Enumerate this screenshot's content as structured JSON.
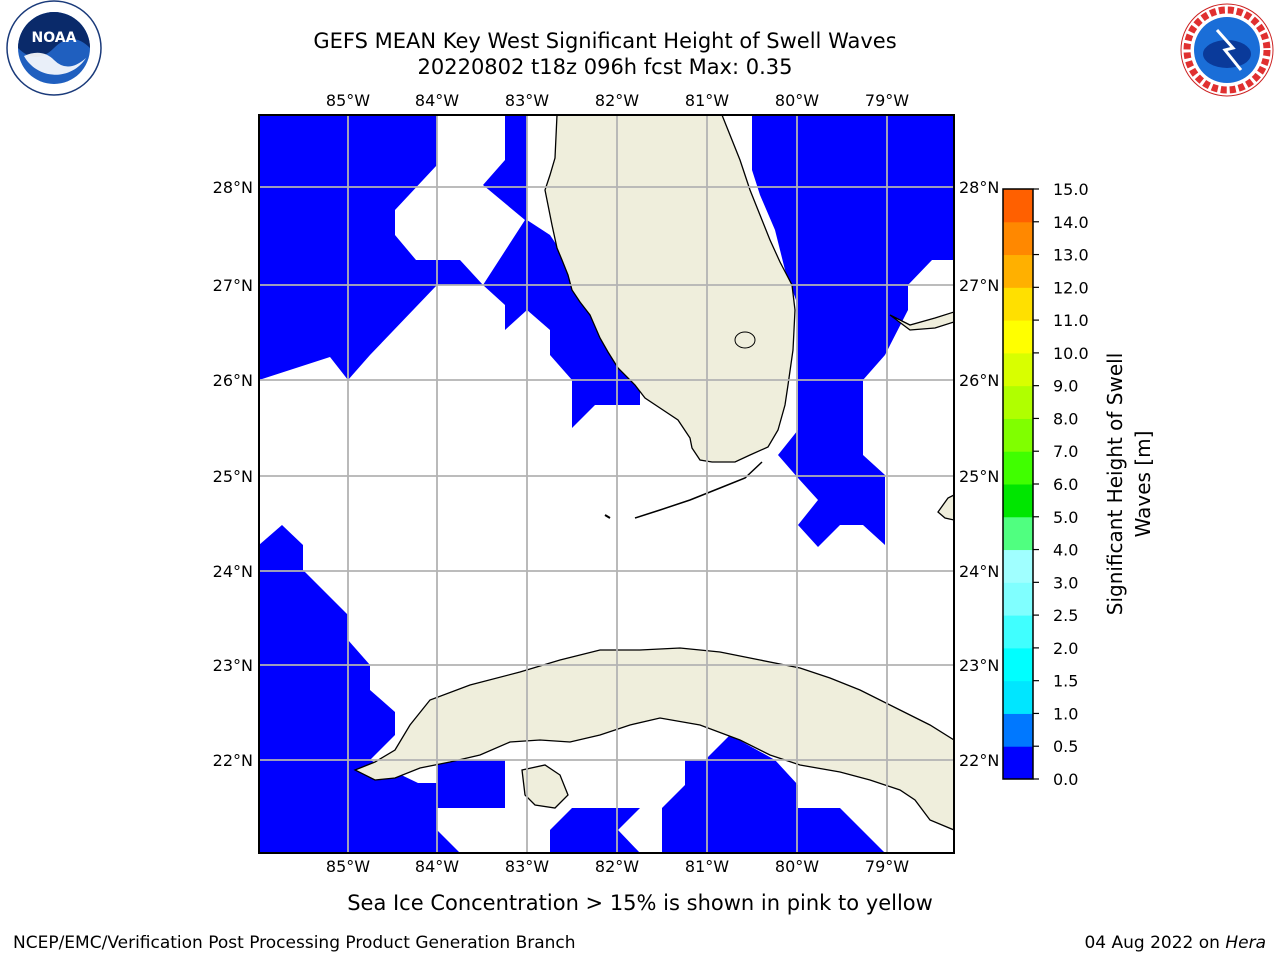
{
  "header": {
    "title_line1": "GEFS MEAN Key West Significant Height of Swell Waves",
    "title_line2": "20220802 t18z 096h fcst   Max: 0.35"
  },
  "logos": {
    "left": {
      "name": "noaa-logo",
      "text": "NOAA",
      "ring_text": "NATIONAL OCEANIC AND ATMOSPHERIC ADMINISTRATION · U.S. DEPARTMENT OF COMMERCE"
    },
    "right": {
      "name": "nws-logo",
      "ring_text": "NATIONAL WEATHER SERVICE"
    }
  },
  "map": {
    "longitude_ticks": [
      "85°W",
      "84°W",
      "83°W",
      "82°W",
      "81°W",
      "80°W",
      "79°W"
    ],
    "latitude_ticks": [
      "28°N",
      "27°N",
      "26°N",
      "25°N",
      "24°N",
      "23°N",
      "22°N"
    ],
    "ocean_fill_color": "#0000ff",
    "land_color": "#efeedc",
    "grid_color": "#b3b3b3"
  },
  "colorbar": {
    "title_line1": "Significant Height of Swell",
    "title_line2": "Waves [m]",
    "tick_labels": [
      "0.0",
      "0.5",
      "1.0",
      "1.5",
      "2.0",
      "2.5",
      "3.0",
      "4.0",
      "5.0",
      "6.0",
      "7.0",
      "8.0",
      "9.0",
      "10.0",
      "11.0",
      "12.0",
      "13.0",
      "14.0",
      "15.0"
    ],
    "colors": [
      "#0000ff",
      "#0078ff",
      "#00e6ff",
      "#00ffff",
      "#40ffff",
      "#80ffff",
      "#a0ffff",
      "#50ff80",
      "#00e600",
      "#40ff00",
      "#80ff00",
      "#b0ff00",
      "#d8ff00",
      "#ffff00",
      "#ffe000",
      "#ffb000",
      "#ff8800",
      "#ff6000",
      "#ff2800",
      "#ff0000"
    ]
  },
  "note": "Sea Ice Concentration > 15% is shown in pink to yellow",
  "footer": {
    "left": "NCEP/EMC/Verification Post Processing Product Generation Branch",
    "right_date": "04 Aug 2022 on ",
    "right_host": "Hera"
  }
}
